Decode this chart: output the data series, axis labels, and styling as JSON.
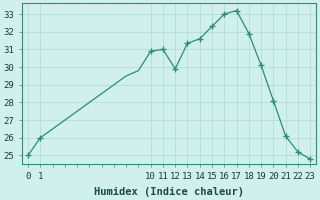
{
  "x_all": [
    0,
    1,
    2,
    3,
    4,
    5,
    6,
    7,
    8,
    9,
    10,
    11,
    12,
    13,
    14,
    15,
    16,
    17,
    18,
    19,
    20,
    21,
    22,
    23
  ],
  "y_all": [
    25.0,
    26.0,
    26.5,
    27.0,
    27.5,
    28.0,
    28.5,
    29.0,
    29.5,
    29.8,
    30.9,
    31.0,
    29.9,
    31.35,
    31.6,
    32.3,
    33.0,
    33.2,
    31.9,
    30.1,
    28.1,
    26.1,
    25.2,
    24.8
  ],
  "x_markers": [
    0,
    1,
    10,
    11,
    12,
    13,
    14,
    15,
    16,
    17,
    18,
    19,
    20,
    21,
    22,
    23
  ],
  "y_markers": [
    25.0,
    26.0,
    30.9,
    31.0,
    29.9,
    31.35,
    31.6,
    32.3,
    33.0,
    33.2,
    31.9,
    30.1,
    28.1,
    26.1,
    25.2,
    24.8
  ],
  "line_color": "#2d8b7a",
  "bg_color": "#cff0ec",
  "grid_major_color": "#b0d8d4",
  "grid_minor_color": "#d8eeeb",
  "xlabel": "Humidex (Indice chaleur)",
  "ylim": [
    24.5,
    33.6
  ],
  "xlim": [
    -0.5,
    23.5
  ],
  "yticks": [
    25,
    26,
    27,
    28,
    29,
    30,
    31,
    32,
    33
  ],
  "xtick_positions": [
    0,
    1,
    10,
    11,
    12,
    13,
    14,
    15,
    16,
    17,
    18,
    19,
    20,
    21,
    22,
    23
  ],
  "xtick_labels": [
    "0",
    "1",
    "10",
    "11",
    "12",
    "13",
    "14",
    "15",
    "16",
    "17",
    "18",
    "19",
    "20",
    "21",
    "22",
    "23"
  ],
  "tick_fontsize": 6.5,
  "xlabel_fontsize": 7.5
}
